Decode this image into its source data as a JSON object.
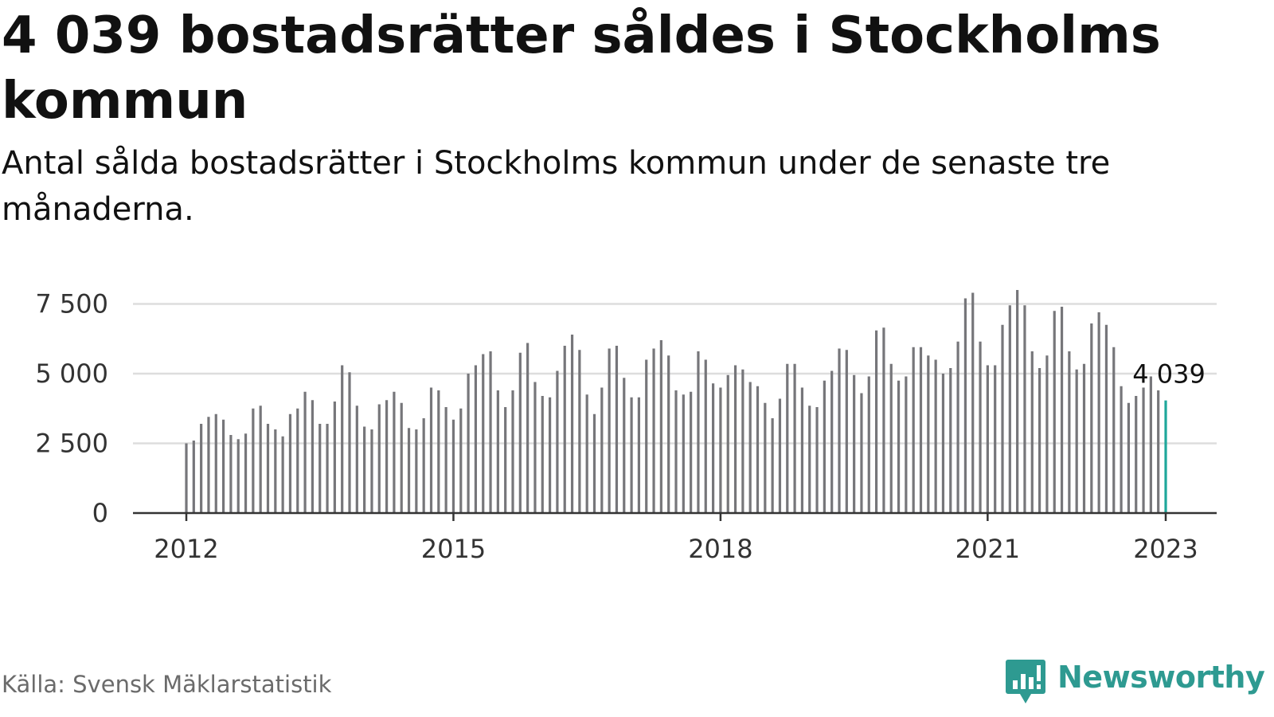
{
  "title": "4 039 bostadsrätter såldes i Stockholms kommun",
  "subtitle": "Antal sålda bostadsrätter i Stockholms kommun under de senaste tre månaderna.",
  "source": "Källa: Svensk Mäklarstatistik",
  "brand": {
    "name": "Newsworthy",
    "icon": "newsworthy-logo-icon",
    "color": "#2e9a91"
  },
  "colors": {
    "bar": "#76767a",
    "highlight": "#1fa79b",
    "grid": "#dddddd",
    "axis": "#333333"
  },
  "chart_data": {
    "type": "bar",
    "title": "4 039 bostadsrätter såldes i Stockholms kommun",
    "subtitle": "Antal sålda bostadsrätter i Stockholms kommun under de senaste tre månaderna.",
    "xlabel": "",
    "ylabel": "",
    "ylim": [
      0,
      8000
    ],
    "yticks": [
      0,
      2500,
      5000,
      7500
    ],
    "ytick_labels": [
      "0",
      "2 500",
      "5 000",
      "7 500"
    ],
    "xticks": [
      "2012-01",
      "2015-01",
      "2018-01",
      "2021-01",
      "2023-01"
    ],
    "xtick_labels": [
      "2012",
      "2015",
      "2018",
      "2021",
      "2023"
    ],
    "grid": true,
    "start_month": "2012-01",
    "values": [
      2500,
      2600,
      3200,
      3450,
      3550,
      3350,
      2800,
      2650,
      2850,
      3750,
      3850,
      3200,
      3000,
      2750,
      3550,
      3750,
      4350,
      4050,
      3200,
      3200,
      4000,
      5300,
      5050,
      3850,
      3100,
      3000,
      3900,
      4050,
      4350,
      3950,
      3050,
      3000,
      3400,
      4500,
      4400,
      3800,
      3350,
      3750,
      5000,
      5300,
      5700,
      5800,
      4400,
      3800,
      4400,
      5750,
      6100,
      4700,
      4200,
      4150,
      5100,
      6000,
      6400,
      5850,
      4250,
      3550,
      4500,
      5900,
      6000,
      4850,
      4150,
      4150,
      5500,
      5900,
      6200,
      5650,
      4400,
      4250,
      4350,
      5800,
      5500,
      4650,
      4500,
      4950,
      5300,
      5150,
      4700,
      4550,
      3950,
      3400,
      4100,
      5350,
      5350,
      4500,
      3850,
      3800,
      4750,
      5100,
      5900,
      5850,
      4950,
      4300,
      4900,
      6550,
      6650,
      5350,
      4750,
      4900,
      5950,
      5950,
      5650,
      5500,
      5000,
      5200,
      6150,
      7700,
      7900,
      6150,
      5300,
      5300,
      6750,
      7450,
      8000,
      7450,
      5800,
      5200,
      5650,
      7250,
      7400,
      5800,
      5150,
      5350,
      6800,
      7200,
      6750,
      5950,
      4550,
      3950,
      4200,
      4500,
      4900,
      4400,
      4039
    ],
    "highlight": {
      "month": "2023-01",
      "value": 4039,
      "label": "4 039"
    }
  }
}
